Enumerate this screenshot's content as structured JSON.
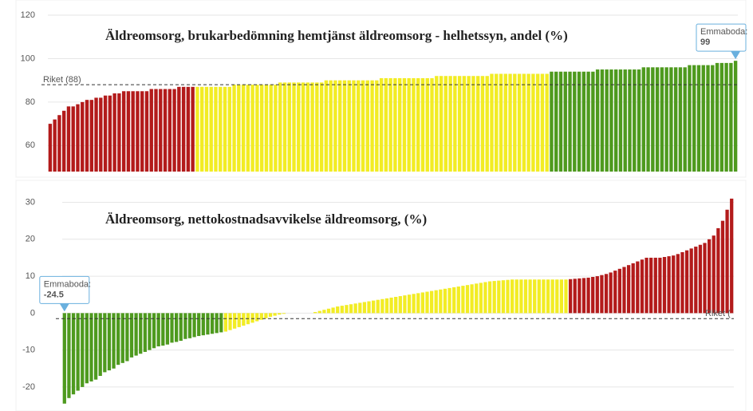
{
  "chart_data": [
    {
      "type": "bar",
      "title": "Äldreomsorg, brukarbedömning hemtjänst äldreomsorg - helhetssyn, andel (%)",
      "ylim": [
        48,
        120
      ],
      "yticks": [
        60,
        80,
        100,
        120
      ],
      "grid": true,
      "reference": {
        "label": "Riket (88)",
        "value": 88,
        "corner": "left"
      },
      "annotation": {
        "label": "Emmaboda:",
        "value": 99
      },
      "series": [
        {
          "color": "#b31b1b",
          "values": [
            70,
            72,
            74,
            76,
            78,
            78,
            79,
            80,
            81,
            81,
            82,
            82,
            83,
            83,
            84,
            84,
            85,
            85,
            85,
            85,
            85,
            85,
            86,
            86,
            86,
            86,
            86,
            86,
            87,
            87,
            87,
            87
          ]
        },
        {
          "color": "#f2ec24",
          "values": [
            87,
            87,
            87,
            87,
            87,
            87,
            87,
            87,
            88,
            88,
            88,
            88,
            88,
            88,
            88,
            88,
            88,
            88,
            89,
            89,
            89,
            89,
            89,
            89,
            89,
            89,
            89,
            89,
            90,
            90,
            90,
            90,
            90,
            90,
            90,
            90,
            90,
            90,
            90,
            90,
            91,
            91,
            91,
            91,
            91,
            91,
            91,
            91,
            91,
            91,
            91,
            91,
            92,
            92,
            92,
            92,
            92,
            92,
            92,
            92,
            92,
            92,
            92,
            92,
            93,
            93,
            93,
            93,
            93,
            93,
            93,
            93,
            93,
            93,
            93,
            93,
            93
          ]
        },
        {
          "color": "#4e9a1e",
          "values": [
            94,
            94,
            94,
            94,
            94,
            94,
            94,
            94,
            94,
            94,
            95,
            95,
            95,
            95,
            95,
            95,
            95,
            95,
            95,
            95,
            96,
            96,
            96,
            96,
            96,
            96,
            96,
            96,
            96,
            96,
            97,
            97,
            97,
            97,
            97,
            97,
            98,
            98,
            98,
            98,
            99
          ]
        }
      ]
    },
    {
      "type": "bar",
      "title": "Äldreomsorg, nettokostnadsavvikelse äldreomsorg, (%)",
      "ylim": [
        -26.5,
        34
      ],
      "yticks": [
        -20,
        -10,
        0,
        10,
        20,
        30
      ],
      "grid": true,
      "reference": {
        "label": "Riket (",
        "value": -1.5,
        "corner": "right"
      },
      "annotation": {
        "label": "Emmaboda:",
        "value": -24.5
      },
      "series": [
        {
          "color": "#4e9a1e",
          "values": [
            -24.5,
            -23,
            -22,
            -21,
            -20,
            -19,
            -18.5,
            -18,
            -17,
            -16,
            -15.5,
            -15,
            -14,
            -13.5,
            -13,
            -12,
            -11.5,
            -11,
            -10.5,
            -10,
            -9.5,
            -9,
            -8.8,
            -8.5,
            -8,
            -7.8,
            -7.5,
            -7,
            -6.8,
            -6.5,
            -6.2,
            -6,
            -5.8,
            -5.6,
            -5.4,
            -5.2
          ]
        },
        {
          "color": "#f2ec24",
          "values": [
            -5,
            -4.6,
            -4.2,
            -3.8,
            -3.4,
            -3,
            -2.6,
            -2.2,
            -1.8,
            -1.4,
            -1,
            -0.7,
            -0.4,
            -0.2,
            0,
            0,
            0,
            0,
            0,
            0,
            0.3,
            0.6,
            0.9,
            1.2,
            1.5,
            1.8,
            2.0,
            2.2,
            2.4,
            2.6,
            2.8,
            3.0,
            3.2,
            3.4,
            3.6,
            3.8,
            4.0,
            4.2,
            4.4,
            4.6,
            4.8,
            5.0,
            5.2,
            5.4,
            5.6,
            5.8,
            6.0,
            6.2,
            6.4,
            6.6,
            6.8,
            7.0,
            7.2,
            7.4,
            7.6,
            7.8,
            8.0,
            8.2,
            8.4,
            8.6,
            8.7,
            8.8,
            8.9,
            9.0,
            9.1,
            9.1,
            9.1,
            9.1,
            9.1,
            9.1,
            9.1,
            9.1,
            9.1,
            9.1,
            9.1,
            9.1,
            9.1
          ]
        },
        {
          "color": "#b31b1b",
          "values": [
            9.2,
            9.3,
            9.4,
            9.5,
            9.6,
            9.8,
            10,
            10.3,
            10.6,
            11,
            11.5,
            12,
            12.5,
            13,
            13.5,
            14,
            14.5,
            15,
            15,
            15,
            15,
            15.2,
            15.4,
            15.6,
            16,
            16.5,
            17,
            17.5,
            18,
            18.5,
            19,
            20,
            21,
            23,
            25,
            28,
            31
          ]
        }
      ]
    }
  ]
}
